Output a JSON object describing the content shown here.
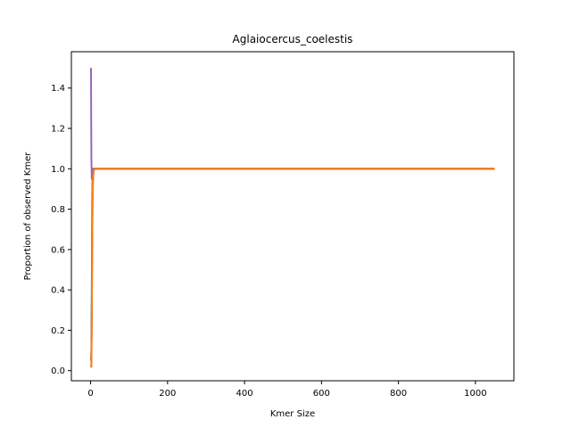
{
  "chart_data": {
    "type": "line",
    "title": "Aglaiocercus_coelestis",
    "xlabel": "Kmer Size",
    "ylabel": "Proportion of observed Kmer",
    "xlim": [
      -50,
      1100
    ],
    "ylim": [
      -0.05,
      1.58
    ],
    "xticks": [
      0,
      200,
      400,
      600,
      800,
      1000
    ],
    "yticks": [
      0.0,
      0.2,
      0.4,
      0.6,
      0.8,
      1.0,
      1.2,
      1.4
    ],
    "xtick_labels": [
      "0",
      "200",
      "400",
      "600",
      "800",
      "1000"
    ],
    "ytick_labels": [
      "0.0",
      "0.2",
      "0.4",
      "0.6",
      "0.8",
      "1.0",
      "1.2",
      "1.4"
    ],
    "grid": false,
    "series": [
      {
        "color": "#1f77b4",
        "x": [
          1,
          2,
          3,
          4,
          5,
          6,
          8,
          10,
          15,
          20,
          50,
          100,
          200,
          400,
          600,
          800,
          1000,
          1050
        ],
        "y": [
          0.02,
          0.03,
          0.4,
          0.8,
          0.95,
          0.99,
          1.0,
          1.0,
          1.0,
          1.0,
          1.0,
          1.0,
          1.0,
          1.0,
          1.0,
          1.0,
          1.0,
          1.0
        ]
      },
      {
        "color": "#9467bd",
        "x": [
          1,
          1.5,
          2,
          3,
          4,
          5,
          6,
          8,
          10,
          15,
          20,
          50,
          100,
          200,
          400,
          600,
          800,
          1000,
          1050
        ],
        "y": [
          1.5,
          1.25,
          1.05,
          0.95,
          0.98,
          1.0,
          1.0,
          1.0,
          1.0,
          1.0,
          1.0,
          1.0,
          1.0,
          1.0,
          1.0,
          1.0,
          1.0,
          1.0,
          1.0
        ]
      },
      {
        "color": "#8c564b",
        "x": [
          1,
          2,
          3,
          4,
          5,
          6,
          7,
          8,
          10,
          15,
          20,
          50,
          100,
          200,
          400,
          600,
          800,
          1000,
          1050
        ],
        "y": [
          0.05,
          0.1,
          0.28,
          0.6,
          0.85,
          0.93,
          0.97,
          0.99,
          1.0,
          1.0,
          1.0,
          1.0,
          1.0,
          1.0,
          1.0,
          1.0,
          1.0,
          1.0,
          1.0
        ]
      },
      {
        "color": "#ff7f0e",
        "x": [
          1,
          2,
          3,
          4,
          5,
          6,
          8,
          10,
          15,
          20,
          50,
          100,
          200,
          400,
          600,
          800,
          1000,
          1050
        ],
        "y": [
          0.015,
          0.02,
          0.25,
          0.6,
          0.82,
          0.95,
          0.99,
          1.0,
          1.0,
          1.0,
          1.0,
          1.0,
          1.0,
          1.0,
          1.0,
          1.0,
          1.0,
          1.0
        ]
      }
    ]
  }
}
